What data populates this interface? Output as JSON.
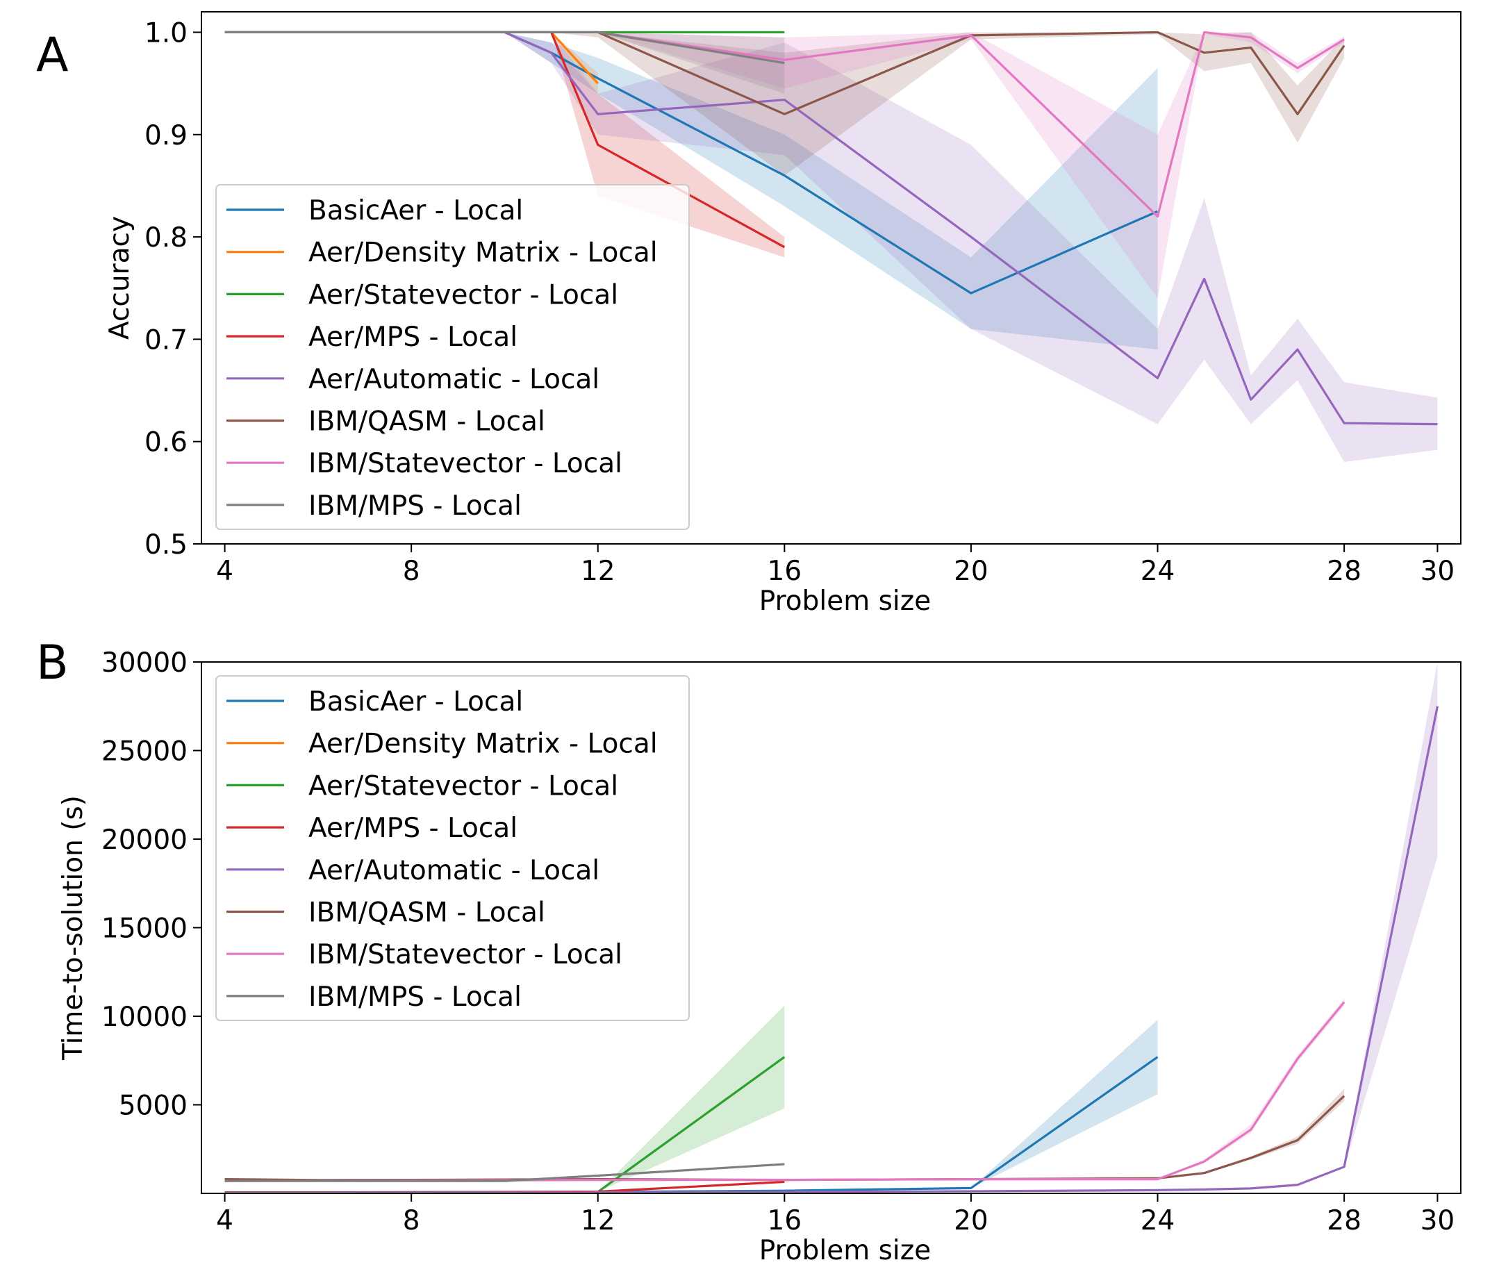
{
  "chart_data": [
    {
      "panel_label": "A",
      "type": "line",
      "xlabel": "Problem size",
      "ylabel": "Accuracy",
      "xlim": [
        3.5,
        30.5
      ],
      "ylim": [
        0.5,
        1.02
      ],
      "xticks": [
        4,
        8,
        12,
        16,
        20,
        24,
        28,
        30
      ],
      "yticks": [
        0.5,
        0.6,
        0.7,
        0.8,
        0.9,
        1.0
      ],
      "ytick_labels": [
        "0.5",
        "0.6",
        "0.7",
        "0.8",
        "0.9",
        "1.0"
      ],
      "legend": "bottom-left",
      "series": [
        {
          "name": "BasicAer - Local",
          "color": "#1f77b4",
          "x": [
            4,
            6,
            8,
            10,
            11,
            12,
            16,
            20,
            24
          ],
          "y": [
            1.0,
            1.0,
            1.0,
            1.0,
            0.98,
            0.955,
            0.86,
            0.745,
            0.825
          ],
          "lower": [
            1.0,
            1.0,
            1.0,
            1.0,
            0.97,
            0.94,
            0.83,
            0.71,
            0.69
          ],
          "upper": [
            1.0,
            1.0,
            1.0,
            1.0,
            0.99,
            0.975,
            0.9,
            0.78,
            0.965
          ]
        },
        {
          "name": "Aer/Density Matrix - Local",
          "color": "#ff7f0e",
          "x": [
            4,
            6,
            8,
            10,
            11,
            12
          ],
          "y": [
            1.0,
            1.0,
            1.0,
            1.0,
            1.0,
            0.95
          ],
          "lower": [
            1.0,
            1.0,
            1.0,
            1.0,
            1.0,
            0.94
          ],
          "upper": [
            1.0,
            1.0,
            1.0,
            1.0,
            1.0,
            0.96
          ]
        },
        {
          "name": "Aer/Statevector - Local",
          "color": "#2ca02c",
          "x": [
            4,
            6,
            8,
            10,
            11,
            12,
            16
          ],
          "y": [
            1.0,
            1.0,
            1.0,
            1.0,
            1.0,
            1.0,
            1.0
          ],
          "lower": [
            1.0,
            1.0,
            1.0,
            1.0,
            1.0,
            1.0,
            1.0
          ],
          "upper": [
            1.0,
            1.0,
            1.0,
            1.0,
            1.0,
            1.0,
            1.0
          ]
        },
        {
          "name": "Aer/MPS - Local",
          "color": "#d62728",
          "x": [
            4,
            6,
            8,
            10,
            11,
            12,
            16
          ],
          "y": [
            1.0,
            1.0,
            1.0,
            1.0,
            1.0,
            0.89,
            0.79
          ],
          "lower": [
            1.0,
            1.0,
            1.0,
            1.0,
            1.0,
            0.84,
            0.78
          ],
          "upper": [
            1.0,
            1.0,
            1.0,
            1.0,
            1.0,
            0.94,
            0.8
          ]
        },
        {
          "name": "Aer/Automatic - Local",
          "color": "#9467bd",
          "x": [
            4,
            6,
            8,
            10,
            11,
            12,
            16,
            20,
            24,
            25,
            26,
            27,
            28,
            30
          ],
          "y": [
            1.0,
            1.0,
            1.0,
            1.0,
            0.98,
            0.92,
            0.934,
            0.8,
            0.662,
            0.759,
            0.641,
            0.69,
            0.618,
            0.617
          ],
          "lower": [
            1.0,
            1.0,
            1.0,
            1.0,
            0.97,
            0.9,
            0.88,
            0.71,
            0.617,
            0.68,
            0.617,
            0.66,
            0.58,
            0.592
          ],
          "upper": [
            1.0,
            1.0,
            1.0,
            1.0,
            0.99,
            0.94,
            0.99,
            0.89,
            0.71,
            0.838,
            0.665,
            0.72,
            0.658,
            0.643
          ]
        },
        {
          "name": "IBM/QASM - Local",
          "color": "#8c564b",
          "x": [
            4,
            6,
            8,
            10,
            11,
            12,
            16,
            20,
            24,
            25,
            26,
            27,
            28
          ],
          "y": [
            1.0,
            1.0,
            1.0,
            1.0,
            1.0,
            1.0,
            0.92,
            0.997,
            1.0,
            0.98,
            0.985,
            0.92,
            0.987
          ],
          "lower": [
            1.0,
            1.0,
            1.0,
            1.0,
            1.0,
            0.995,
            0.86,
            0.993,
            0.998,
            0.962,
            0.97,
            0.892,
            0.975
          ],
          "upper": [
            1.0,
            1.0,
            1.0,
            1.0,
            1.0,
            1.0,
            0.98,
            1.0,
            1.0,
            0.998,
            1.0,
            0.948,
            0.995
          ]
        },
        {
          "name": "IBM/Statevector - Local",
          "color": "#e377c2",
          "x": [
            4,
            6,
            8,
            10,
            11,
            12,
            16,
            20,
            24,
            25,
            26,
            27,
            28
          ],
          "y": [
            1.0,
            1.0,
            1.0,
            1.0,
            1.0,
            1.0,
            0.973,
            0.997,
            0.82,
            1.0,
            0.995,
            0.965,
            0.993
          ],
          "lower": [
            1.0,
            1.0,
            1.0,
            1.0,
            1.0,
            1.0,
            0.945,
            0.993,
            0.74,
            0.998,
            0.99,
            0.96,
            0.99
          ],
          "upper": [
            1.0,
            1.0,
            1.0,
            1.0,
            1.0,
            1.0,
            0.995,
            1.0,
            0.9,
            1.0,
            1.0,
            0.97,
            0.996
          ]
        },
        {
          "name": "IBM/MPS - Local",
          "color": "#7f7f7f",
          "x": [
            4,
            6,
            8,
            10,
            11,
            12,
            16
          ],
          "y": [
            1.0,
            1.0,
            1.0,
            1.0,
            1.0,
            1.0,
            0.97
          ],
          "lower": [
            1.0,
            1.0,
            1.0,
            1.0,
            1.0,
            1.0,
            0.94
          ],
          "upper": [
            1.0,
            1.0,
            1.0,
            1.0,
            1.0,
            1.0,
            0.995
          ]
        }
      ]
    },
    {
      "panel_label": "B",
      "type": "line",
      "xlabel": "Problem size",
      "ylabel": "Time-to-solution (s)",
      "xlim": [
        3.5,
        30.5
      ],
      "ylim": [
        0,
        30000
      ],
      "xticks": [
        4,
        8,
        12,
        16,
        20,
        24,
        28,
        30
      ],
      "yticks": [
        5000,
        10000,
        15000,
        20000,
        25000,
        30000
      ],
      "ytick_labels": [
        "5000",
        "10000",
        "15000",
        "20000",
        "25000",
        "30000"
      ],
      "legend": "top-left",
      "series": [
        {
          "name": "BasicAer - Local",
          "color": "#1f77b4",
          "x": [
            4,
            8,
            12,
            16,
            20,
            24
          ],
          "y": [
            50,
            60,
            80,
            150,
            300,
            7700
          ],
          "lower": [
            50,
            60,
            80,
            150,
            300,
            5600
          ],
          "upper": [
            50,
            60,
            80,
            150,
            300,
            9800
          ]
        },
        {
          "name": "Aer/Density Matrix - Local",
          "color": "#ff7f0e",
          "x": [
            4,
            8,
            12
          ],
          "y": [
            60,
            60,
            80
          ],
          "lower": [
            60,
            60,
            80
          ],
          "upper": [
            60,
            60,
            80
          ]
        },
        {
          "name": "Aer/Statevector - Local",
          "color": "#2ca02c",
          "x": [
            4,
            8,
            12,
            16
          ],
          "y": [
            50,
            60,
            80,
            7700
          ],
          "lower": [
            50,
            60,
            80,
            4800
          ],
          "upper": [
            50,
            60,
            80,
            10600
          ]
        },
        {
          "name": "Aer/MPS - Local",
          "color": "#d62728",
          "x": [
            4,
            8,
            12,
            16
          ],
          "y": [
            50,
            60,
            100,
            650
          ],
          "lower": [
            50,
            60,
            100,
            600
          ],
          "upper": [
            50,
            60,
            100,
            700
          ]
        },
        {
          "name": "Aer/Automatic - Local",
          "color": "#9467bd",
          "x": [
            4,
            8,
            12,
            16,
            20,
            24,
            25,
            26,
            27,
            28,
            30
          ],
          "y": [
            30,
            40,
            60,
            80,
            120,
            180,
            220,
            280,
            480,
            1500,
            27500
          ],
          "lower": [
            30,
            40,
            60,
            80,
            120,
            180,
            220,
            280,
            480,
            1450,
            19000
          ],
          "upper": [
            30,
            40,
            60,
            80,
            120,
            180,
            220,
            280,
            480,
            1550,
            30000
          ]
        },
        {
          "name": "IBM/QASM - Local",
          "color": "#8c564b",
          "x": [
            4,
            6,
            8,
            10,
            12,
            16,
            20,
            24,
            25,
            26,
            27,
            28
          ],
          "y": [
            800,
            750,
            760,
            780,
            800,
            760,
            800,
            850,
            1150,
            2000,
            3000,
            5500
          ],
          "lower": [
            800,
            750,
            760,
            780,
            800,
            740,
            780,
            820,
            1100,
            1900,
            2800,
            5200
          ],
          "upper": [
            800,
            750,
            760,
            780,
            800,
            780,
            820,
            880,
            1200,
            2100,
            3200,
            5900
          ]
        },
        {
          "name": "IBM/Statevector - Local",
          "color": "#e377c2",
          "x": [
            4,
            8,
            12,
            16,
            20,
            24,
            25,
            26,
            27,
            28
          ],
          "y": [
            700,
            720,
            760,
            760,
            800,
            800,
            1800,
            3600,
            7600,
            10800
          ],
          "lower": [
            700,
            720,
            760,
            740,
            780,
            780,
            1700,
            3400,
            7400,
            10600
          ],
          "upper": [
            700,
            720,
            760,
            780,
            820,
            820,
            1900,
            3900,
            7800,
            11000
          ]
        },
        {
          "name": "IBM/MPS - Local",
          "color": "#7f7f7f",
          "x": [
            4,
            8,
            10,
            12,
            16
          ],
          "y": [
            700,
            700,
            700,
            1000,
            1650
          ],
          "lower": [
            700,
            700,
            700,
            980,
            1600
          ],
          "upper": [
            700,
            700,
            700,
            1020,
            1700
          ]
        }
      ]
    }
  ]
}
